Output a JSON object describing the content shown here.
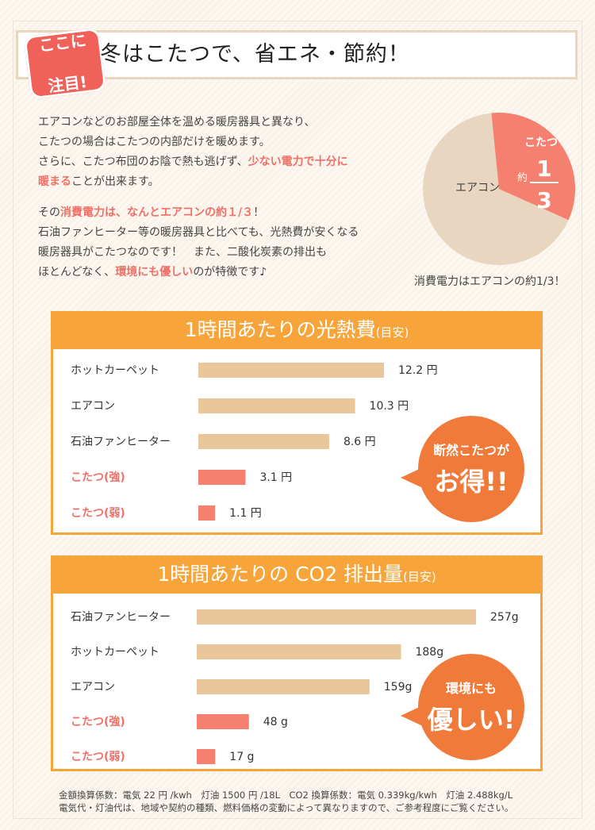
{
  "header": {
    "badge": [
      "ここに",
      "注目!"
    ],
    "title": "冬はこたつで、省エネ・節約！"
  },
  "intro": {
    "p1_lines": [
      "エアコンなどのお部屋全体を温める暖房器具と異なり、",
      "こたつの場合はこたつの内部だけを暖めます。"
    ],
    "p1_l3_a": "さらに、こたつ布団のお陰で熱も逃げず、",
    "p1_l3_b": "少ない電力で十分に",
    "p1_l4_a": "暖まる",
    "p1_l4_b": "ことが出来ます。",
    "p2_l1_a": "その",
    "p2_l1_b": "消費電力は、なんとエアコンの約１/３",
    "p2_l1_c": "！",
    "p2_lines": [
      "石油ファンヒーター等の暖房器具と比べても、光熱費が安くなる",
      "暖房器具がこたつなのです！　また、二酸化炭素の排出も"
    ],
    "p2_l4_a": "ほとんどなく、",
    "p2_l4_b": "環境にも優しい",
    "p2_l4_c": "のが特徴です♪"
  },
  "pie": {
    "main_label": "エアコン",
    "slice_label": "こたつ",
    "approx": "約",
    "numerator": "1",
    "denominator": "3",
    "caption": "消費電力はエアコンの約1/3！",
    "colors": {
      "main": "#e9d6c0",
      "slice": "#f5806f"
    },
    "slice_fraction": 0.333
  },
  "colors": {
    "accent": "#f7a53a",
    "bar_normal": "#e9c79b",
    "bar_highlight": "#f5806f",
    "highlight_text": "#f06f66",
    "bubble": "#f07a3a"
  },
  "chart_data": [
    {
      "type": "bar",
      "orientation": "horizontal",
      "title": "1時間あたりの光熱費",
      "title_note": "(目安)",
      "categories": [
        "ホットカーペット",
        "エアコン",
        "石油ファンヒーター",
        "こたつ(強)",
        "こたつ(弱)"
      ],
      "values": [
        12.2,
        10.3,
        8.6,
        3.1,
        1.1
      ],
      "value_labels": [
        "12.2 円",
        "10.3 円",
        "8.6 円",
        "3.1 円",
        "1.1 円"
      ],
      "highlight": [
        false,
        false,
        false,
        true,
        true
      ],
      "xlim": [
        0,
        12.2
      ],
      "callout": [
        "断然こたつが",
        "お得!!"
      ]
    },
    {
      "type": "bar",
      "orientation": "horizontal",
      "title": "1時間あたりの CO2 排出量",
      "title_note": "(目安)",
      "categories": [
        "石油ファンヒーター",
        "ホットカーペット",
        "エアコン",
        "こたつ(強)",
        "こたつ(弱)"
      ],
      "values": [
        257,
        188,
        159,
        48,
        17
      ],
      "value_labels": [
        "257g",
        "188g",
        "159g",
        "48 g",
        "17 g"
      ],
      "highlight": [
        false,
        false,
        false,
        true,
        true
      ],
      "xlim": [
        0,
        257
      ],
      "callout": [
        "環境にも",
        "優しい!"
      ]
    }
  ],
  "footnote": {
    "line1": "金額換算係数：電気 22 円 /kwh　灯油 1500 円 /18L　CO2 換算係数：電気 0.339kg/kwh　灯油 2.488kg/L",
    "line2": "電気代・灯油代は、地域や契約の種類、燃料価格の変動によって異なりますので、ご参考程度にご覧ください。"
  }
}
